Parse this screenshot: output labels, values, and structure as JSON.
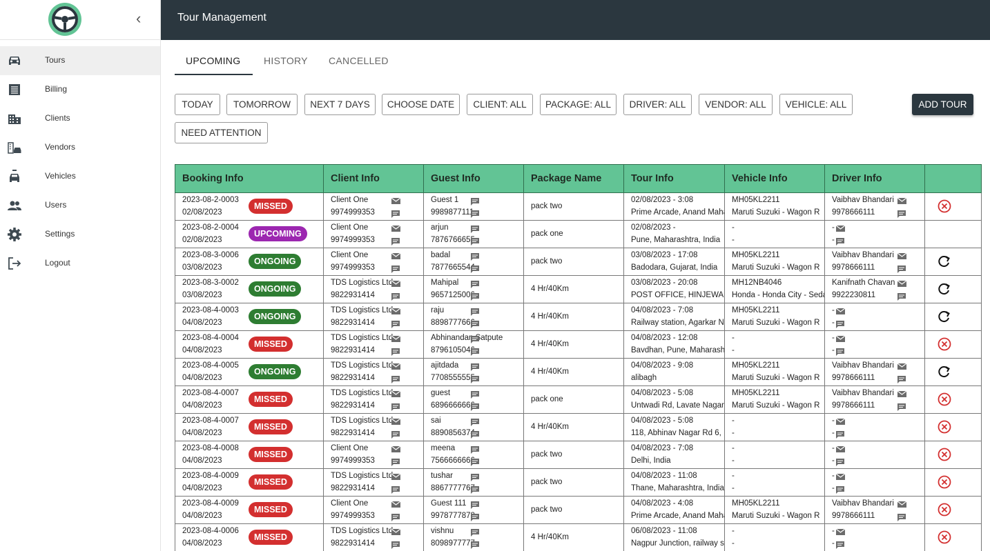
{
  "colors": {
    "topbar": "#2b373f",
    "header": "#62c495",
    "missed": "#d32f2f",
    "upcoming": "#9c27b0",
    "ongoing": "#2e7d32"
  },
  "sidebar": {
    "items": [
      {
        "label": "Tours",
        "icon": "car-icon"
      },
      {
        "label": "Billing",
        "icon": "receipt-icon"
      },
      {
        "label": "Clients",
        "icon": "building-icon"
      },
      {
        "label": "Vendors",
        "icon": "vendor-icon"
      },
      {
        "label": "Vehicles",
        "icon": "vehicle-icon"
      },
      {
        "label": "Users",
        "icon": "users-icon"
      },
      {
        "label": "Settings",
        "icon": "gear-icon"
      },
      {
        "label": "Logout",
        "icon": "logout-icon"
      }
    ]
  },
  "header": {
    "title": "Tour Management"
  },
  "tabs": [
    "UPCOMING",
    "HISTORY",
    "CANCELLED"
  ],
  "filters": [
    "TODAY",
    "TOMORROW",
    "NEXT 7 DAYS",
    "CHOOSE DATE",
    "CLIENT: ALL",
    "PACKAGE: ALL",
    "DRIVER: ALL",
    "VENDOR: ALL",
    "VEHICLE: ALL",
    "NEED ATTENTION"
  ],
  "add_tour": "ADD TOUR",
  "table": {
    "columns": [
      "Booking Info",
      "Client Info",
      "Guest Info",
      "Package Name",
      "Tour Info",
      "Vehicle Info",
      "Driver Info",
      ""
    ],
    "rows": [
      {
        "id": "2023-08-2-0003",
        "date": "02/08/2023",
        "status": "MISSED",
        "client": "Client One",
        "client_phone": "9974999353",
        "guest": "Guest 1",
        "guest_phone": "9989877111",
        "package": "pack two",
        "tour_time": "02/08/2023 - 3:08",
        "tour_place": "Prime Arcade, Anand Mahal Road",
        "vehicle_no": "MH05KL2211",
        "vehicle_model": "Maruti Suzuki - Wagon R",
        "driver": "Vaibhav Bhandari",
        "driver_phone": "9978666111",
        "action": "cancel"
      },
      {
        "id": "2023-08-2-0004",
        "date": "02/08/2023",
        "status": "UPCOMING",
        "client": "Client One",
        "client_phone": "9974999353",
        "guest": "arjun",
        "guest_phone": "7876766655",
        "package": "pack one",
        "tour_time": "02/08/2023 -",
        "tour_place": "Pune, Maharashtra, India",
        "vehicle_no": "-",
        "vehicle_model": "-",
        "driver": "-",
        "driver_phone": "-",
        "action": "none"
      },
      {
        "id": "2023-08-3-0006",
        "date": "03/08/2023",
        "status": "ONGOING",
        "client": "Client One",
        "client_phone": "9974999353",
        "guest": "badal",
        "guest_phone": "7877665544",
        "package": "pack two",
        "tour_time": "03/08/2023 - 17:08",
        "tour_place": "Badodara, Gujarat, India",
        "vehicle_no": "MH05KL2211",
        "vehicle_model": "Maruti Suzuki - Wagon R",
        "driver": "Vaibhav Bhandari",
        "driver_phone": "9978666111",
        "action": "refresh"
      },
      {
        "id": "2023-08-3-0002",
        "date": "03/08/2023",
        "status": "ONGOING",
        "client": "TDS Logistics Ltd",
        "client_phone": "9822931414",
        "guest": "Mahipal",
        "guest_phone": "9657125006",
        "package": "4 Hr/40Km",
        "tour_time": "03/08/2023 - 20:08",
        "tour_place": "POST OFFICE, HINJEWADI",
        "vehicle_no": "MH12NB4046",
        "vehicle_model": "Honda - Honda City - Sedan",
        "driver": "Kanifnath Chavan",
        "driver_phone": "9922230811",
        "action": "refresh"
      },
      {
        "id": "2023-08-4-0003",
        "date": "04/08/2023",
        "status": "ONGOING",
        "client": "TDS Logistics Ltd",
        "client_phone": "9822931414",
        "guest": "raju",
        "guest_phone": "8898777666",
        "package": "4 Hr/40Km",
        "tour_time": "04/08/2023 - 7:08",
        "tour_place": "Railway station, Agarkar Nagar",
        "vehicle_no": "MH05KL2211",
        "vehicle_model": "Maruti Suzuki - Wagon R",
        "driver": "-",
        "driver_phone": "-",
        "action": "refresh"
      },
      {
        "id": "2023-08-4-0004",
        "date": "04/08/2023",
        "status": "MISSED",
        "client": "TDS Logistics Ltd",
        "client_phone": "9822931414",
        "guest": "Abhinandan Satpute",
        "guest_phone": "8796105046",
        "package": "4 Hr/40Km",
        "tour_time": "04/08/2023 - 12:08",
        "tour_place": "Bavdhan, Pune, Maharashtra",
        "vehicle_no": "-",
        "vehicle_model": "-",
        "driver": "-",
        "driver_phone": "-",
        "action": "cancel"
      },
      {
        "id": "2023-08-4-0005",
        "date": "04/08/2023",
        "status": "ONGOING",
        "client": "TDS Logistics Ltd",
        "client_phone": "9822931414",
        "guest": "ajitdada",
        "guest_phone": "7708555555",
        "package": "4 Hr/40Km",
        "tour_time": "04/08/2023 - 9:08",
        "tour_place": "alibagh",
        "vehicle_no": "MH05KL2211",
        "vehicle_model": "Maruti Suzuki - Wagon R",
        "driver": "Vaibhav Bhandari",
        "driver_phone": "9978666111",
        "action": "refresh"
      },
      {
        "id": "2023-08-4-0007",
        "date": "04/08/2023",
        "status": "MISSED",
        "client": "TDS Logistics Ltd",
        "client_phone": "9822931414",
        "guest": "guest",
        "guest_phone": "6896666666",
        "package": "pack one",
        "tour_time": "04/08/2023 - 5:08",
        "tour_place": "Untwadi Rd, Lavate Nagar",
        "vehicle_no": "MH05KL2211",
        "vehicle_model": "Maruti Suzuki - Wagon R",
        "driver": "Vaibhav Bhandari",
        "driver_phone": "9978666111",
        "action": "cancel"
      },
      {
        "id": "2023-08-4-0007",
        "date": "04/08/2023",
        "status": "MISSED",
        "client": "TDS Logistics Ltd",
        "client_phone": "9822931414",
        "guest": "sai",
        "guest_phone": "8890856374",
        "package": "4 Hr/40Km",
        "tour_time": "04/08/2023 - 5:08",
        "tour_place": "118, Abhinav Nagar Rd 6,",
        "vehicle_no": "-",
        "vehicle_model": "-",
        "driver": "-",
        "driver_phone": "-",
        "action": "cancel"
      },
      {
        "id": "2023-08-4-0008",
        "date": "04/08/2023",
        "status": "MISSED",
        "client": "Client One",
        "client_phone": "9974999353",
        "guest": "meena",
        "guest_phone": "7566666666",
        "package": "pack two",
        "tour_time": "04/08/2023 - 7:08",
        "tour_place": "Delhi, India",
        "vehicle_no": "-",
        "vehicle_model": "-",
        "driver": "-",
        "driver_phone": "-",
        "action": "cancel"
      },
      {
        "id": "2023-08-4-0009",
        "date": "04/08/2023",
        "status": "MISSED",
        "client": "TDS Logistics Ltd",
        "client_phone": "9822931414",
        "guest": "tushar",
        "guest_phone": "8867777767",
        "package": "pack two",
        "tour_time": "04/08/2023 - 11:08",
        "tour_place": "Thane, Maharashtra, India",
        "vehicle_no": "-",
        "vehicle_model": "-",
        "driver": "-",
        "driver_phone": "-",
        "action": "cancel"
      },
      {
        "id": "2023-08-4-0009",
        "date": "04/08/2023",
        "status": "MISSED",
        "client": "Client One",
        "client_phone": "9974999353",
        "guest": "Guest 111",
        "guest_phone": "9978777878",
        "package": "pack two",
        "tour_time": "04/08/2023 - 4:08",
        "tour_place": "Prime Arcade, Anand Mahal Road",
        "vehicle_no": "MH05KL2211",
        "vehicle_model": "Maruti Suzuki - Wagon R",
        "driver": "Vaibhav Bhandari",
        "driver_phone": "9978666111",
        "action": "cancel"
      },
      {
        "id": "2023-08-4-0006",
        "date": "04/08/2023",
        "status": "MISSED",
        "client": "TDS Logistics Ltd",
        "client_phone": "9822931414",
        "guest": "vishnu",
        "guest_phone": "8098977777",
        "package": "4 Hr/40Km",
        "tour_time": "06/08/2023 - 11:08",
        "tour_place": "Nagpur Junction, railway station",
        "vehicle_no": "-",
        "vehicle_model": "-",
        "driver": "-",
        "driver_phone": "-",
        "action": "cancel"
      }
    ]
  }
}
